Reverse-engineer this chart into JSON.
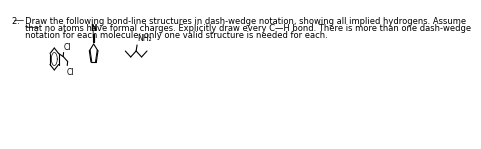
{
  "bg_color": "#ffffff",
  "text_color": "#000000",
  "title_line1": "2.  Draw the following bond-line structures in dash-wedge notation, showing all implied hydrogens. Assume",
  "title_line2": "     that no atoms have formal charges. Explicitly draw every C—H bond. There is more than one dash-wedge",
  "title_line3": "     notation for each molecule; only one valid structure is needed for each.",
  "mol1_label": "Cl",
  "mol1_label2": "Cl",
  "mol2_label": "N",
  "mol3_label": "NH₂",
  "font_size_text": 6.0,
  "font_size_label": 5.5
}
